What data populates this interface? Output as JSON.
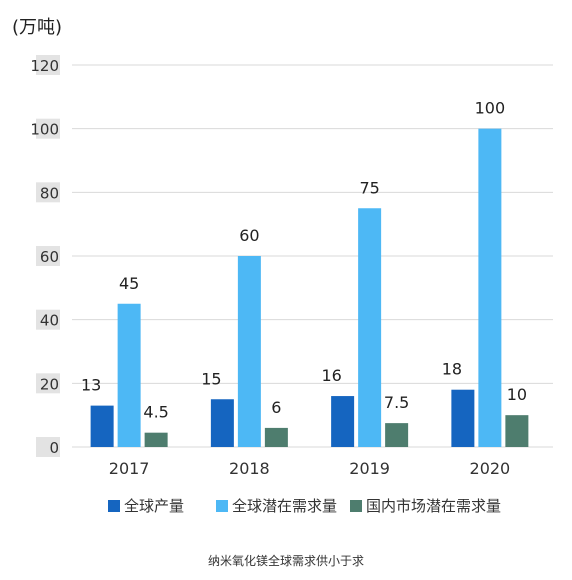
{
  "chart_data": {
    "type": "bar",
    "title": "",
    "ylabel": "(万吨)",
    "xlabel": "",
    "categories": [
      "2017",
      "2018",
      "2019",
      "2020"
    ],
    "ylim": [
      0,
      120
    ],
    "yticks": [
      "0",
      "20",
      "40",
      "60",
      "80",
      "100",
      "120"
    ],
    "grid": true,
    "legend_position": "bottom",
    "series": [
      {
        "name": "全球产量",
        "values": [
          13,
          15,
          16,
          18
        ],
        "labels": [
          "13",
          "15",
          "16",
          "18"
        ],
        "color": "#1565c0"
      },
      {
        "name": "全球潜在需求量",
        "values": [
          45,
          60,
          75,
          100
        ],
        "labels": [
          "45",
          "60",
          "75",
          "100"
        ],
        "color": "#4db8f5"
      },
      {
        "name": "国内市场潜在需求量",
        "values": [
          4.5,
          6,
          7.5,
          10
        ],
        "labels": [
          "4.5",
          "6",
          "7.5",
          "10"
        ],
        "color": "#4e7d6e"
      }
    ]
  },
  "caption": "纳米氧化镁全球需求供小于求"
}
